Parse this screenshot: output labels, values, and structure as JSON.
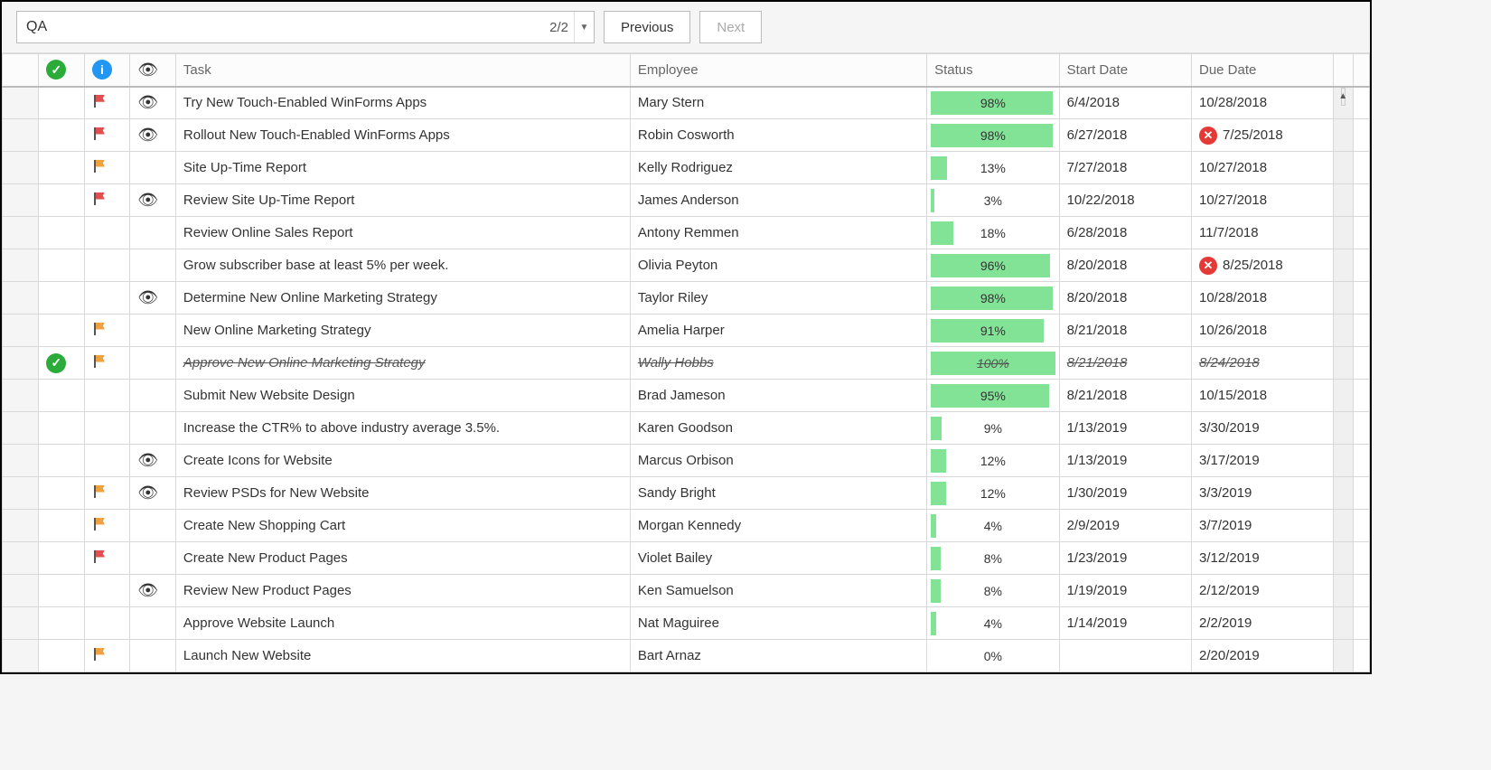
{
  "search": {
    "value": "QA",
    "count": "2/2"
  },
  "buttons": {
    "previous": "Previous",
    "next": "Next"
  },
  "columns": {
    "task": "Task",
    "employee": "Employee",
    "status": "Status",
    "start": "Start Date",
    "due": "Due Date"
  },
  "colors": {
    "bar_fill": "#82e396",
    "flag_red": "#e05050",
    "flag_orange": "#f0a040",
    "overdue": "#e53935",
    "done": "#2bab3a",
    "info": "#2196f3"
  },
  "rows": [
    {
      "done": false,
      "flag": "red",
      "eye": true,
      "task": "Try New Touch-Enabled WinForms Apps",
      "employee": "Mary Stern",
      "status": 98,
      "start": "6/4/2018",
      "due": "10/28/2018",
      "overdue": false
    },
    {
      "done": false,
      "flag": "red",
      "eye": true,
      "task": "Rollout New Touch-Enabled WinForms Apps",
      "employee": "Robin Cosworth",
      "status": 98,
      "start": "6/27/2018",
      "due": "7/25/2018",
      "overdue": true
    },
    {
      "done": false,
      "flag": "orange",
      "eye": false,
      "task": "Site Up-Time Report",
      "employee": "Kelly Rodriguez",
      "status": 13,
      "start": "7/27/2018",
      "due": "10/27/2018",
      "overdue": false
    },
    {
      "done": false,
      "flag": "red",
      "eye": true,
      "task": "Review Site Up-Time Report",
      "employee": "James Anderson",
      "status": 3,
      "start": "10/22/2018",
      "due": "10/27/2018",
      "overdue": false
    },
    {
      "done": false,
      "flag": null,
      "eye": false,
      "task": "Review Online Sales Report",
      "employee": "Antony Remmen",
      "status": 18,
      "start": "6/28/2018",
      "due": "11/7/2018",
      "overdue": false
    },
    {
      "done": false,
      "flag": null,
      "eye": false,
      "task": "Grow subscriber base at least 5% per week.",
      "employee": "Olivia Peyton",
      "status": 96,
      "start": "8/20/2018",
      "due": "8/25/2018",
      "overdue": true
    },
    {
      "done": false,
      "flag": null,
      "eye": true,
      "task": "Determine New Online Marketing Strategy",
      "employee": "Taylor Riley",
      "status": 98,
      "start": "8/20/2018",
      "due": "10/28/2018",
      "overdue": false
    },
    {
      "done": false,
      "flag": "orange",
      "eye": false,
      "task": "New Online Marketing Strategy",
      "employee": "Amelia Harper",
      "status": 91,
      "start": "8/21/2018",
      "due": "10/26/2018",
      "overdue": false
    },
    {
      "done": true,
      "flag": "orange",
      "eye": false,
      "task": "Approve New Online Marketing Strategy",
      "employee": "Wally Hobbs",
      "status": 100,
      "start": "8/21/2018",
      "due": "8/24/2018",
      "overdue": false
    },
    {
      "done": false,
      "flag": null,
      "eye": false,
      "task": "Submit New Website Design",
      "employee": "Brad Jameson",
      "status": 95,
      "start": "8/21/2018",
      "due": "10/15/2018",
      "overdue": false
    },
    {
      "done": false,
      "flag": null,
      "eye": false,
      "task": "Increase the CTR% to above industry average 3.5%.",
      "employee": "Karen Goodson",
      "status": 9,
      "start": "1/13/2019",
      "due": "3/30/2019",
      "overdue": false
    },
    {
      "done": false,
      "flag": null,
      "eye": true,
      "task": "Create Icons for Website",
      "employee": "Marcus Orbison",
      "status": 12,
      "start": "1/13/2019",
      "due": "3/17/2019",
      "overdue": false
    },
    {
      "done": false,
      "flag": "orange",
      "eye": true,
      "task": "Review PSDs for New Website",
      "employee": "Sandy Bright",
      "status": 12,
      "start": "1/30/2019",
      "due": "3/3/2019",
      "overdue": false
    },
    {
      "done": false,
      "flag": "orange",
      "eye": false,
      "task": "Create New Shopping Cart",
      "employee": "Morgan Kennedy",
      "status": 4,
      "start": "2/9/2019",
      "due": "3/7/2019",
      "overdue": false
    },
    {
      "done": false,
      "flag": "red",
      "eye": false,
      "task": "Create New Product Pages",
      "employee": "Violet Bailey",
      "status": 8,
      "start": "1/23/2019",
      "due": "3/12/2019",
      "overdue": false
    },
    {
      "done": false,
      "flag": null,
      "eye": true,
      "task": "Review New Product Pages",
      "employee": "Ken Samuelson",
      "status": 8,
      "start": "1/19/2019",
      "due": "2/12/2019",
      "overdue": false
    },
    {
      "done": false,
      "flag": null,
      "eye": false,
      "task": "Approve Website Launch",
      "employee": "Nat Maguiree",
      "status": 4,
      "start": "1/14/2019",
      "due": "2/2/2019",
      "overdue": false
    },
    {
      "done": false,
      "flag": "orange",
      "eye": false,
      "task": "Launch New Website",
      "employee": "Bart Arnaz",
      "status": 0,
      "start": "",
      "due": "2/20/2019",
      "overdue": false
    }
  ]
}
